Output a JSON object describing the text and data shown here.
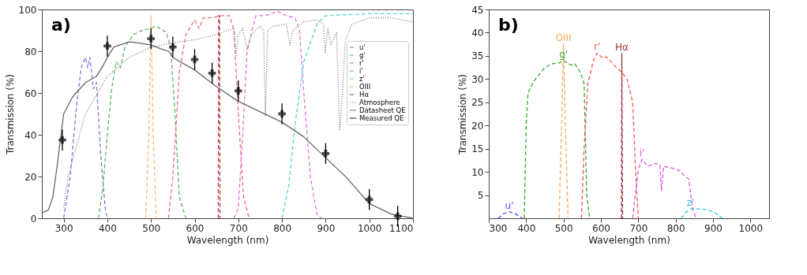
{
  "chart_data": [
    {
      "type": "line",
      "xlabel": "Wavelength (nm)",
      "ylabel": "Transmission (%)",
      "annotations": [
        "a)"
      ],
      "xlim": [
        250,
        1100
      ],
      "xticks": [
        300,
        400,
        500,
        600,
        700,
        800,
        900,
        1000,
        1100
      ],
      "ylim": [
        0,
        100
      ],
      "yticks": [
        0,
        20,
        40,
        60,
        80,
        100
      ],
      "grid": false,
      "legend": "top right",
      "series": [
        {
          "name": "u'",
          "color": "#7b7bd8",
          "line_style": "dashed",
          "x": [
            300,
            315,
            330,
            340,
            350,
            355,
            360,
            368,
            375,
            385,
            395,
            400
          ],
          "values": [
            0,
            20,
            55,
            72,
            77,
            72,
            77,
            62,
            65,
            30,
            5,
            0
          ]
        },
        {
          "name": "g'",
          "color": "#5fb85f",
          "line_style": "dashed",
          "x": [
            380,
            390,
            400,
            410,
            420,
            430,
            440,
            460,
            480,
            500,
            510,
            520,
            535,
            545,
            555,
            565,
            580
          ],
          "values": [
            0,
            15,
            40,
            62,
            75,
            72,
            82,
            88,
            90,
            91,
            92,
            91,
            89,
            82,
            50,
            10,
            0
          ]
        },
        {
          "name": "r'",
          "color": "#f07070",
          "line_style": "dashed",
          "x": [
            540,
            550,
            565,
            580,
            600,
            610,
            620,
            640,
            660,
            680,
            690,
            700,
            712,
            725
          ],
          "values": [
            0,
            20,
            70,
            88,
            95,
            91,
            96,
            96,
            97,
            97,
            90,
            50,
            10,
            0
          ]
        },
        {
          "name": "i'",
          "color": "#dd77dd",
          "line_style": "dashed",
          "x": [
            690,
            700,
            710,
            720,
            740,
            760,
            790,
            810,
            830,
            840,
            850,
            865,
            880,
            890
          ],
          "values": [
            0,
            5,
            40,
            80,
            97,
            97,
            99,
            97,
            96,
            90,
            60,
            20,
            2,
            0
          ]
        },
        {
          "name": "z'",
          "color": "#55d5d5",
          "line_style": "dashed",
          "x": [
            800,
            815,
            830,
            850,
            880,
            900,
            1000,
            1100
          ],
          "values": [
            0,
            15,
            45,
            75,
            93,
            97,
            98,
            98
          ]
        },
        {
          "name": "OIII",
          "color": "#ffbb77",
          "line_style": "dashed",
          "x": [
            488,
            495,
            500,
            505,
            512
          ],
          "values": [
            0,
            40,
            97,
            40,
            0
          ]
        },
        {
          "name": "Hα",
          "color": "#b04040",
          "line_style": "dashed",
          "x": [
            654,
            655,
            657,
            658
          ],
          "values": [
            0,
            97,
            97,
            0
          ]
        },
        {
          "name": "Atmosphere",
          "color": "#777777",
          "line_style": "dotted",
          "x": [
            300,
            310,
            350,
            400,
            450,
            500,
            550,
            600,
            650,
            690,
            695,
            700,
            710,
            720,
            730,
            750,
            758,
            762,
            767,
            780,
            810,
            818,
            825,
            850,
            880,
            895,
            899,
            905,
            912,
            925,
            932,
            937,
            945,
            960,
            1000,
            1050,
            1100
          ],
          "values": [
            5,
            20,
            50,
            68,
            77,
            82,
            84,
            85.5,
            88,
            91,
            78,
            88,
            91,
            81,
            88,
            92,
            90,
            49,
            90,
            92,
            93,
            83,
            90,
            94,
            95,
            93,
            79,
            91,
            83,
            89,
            42,
            55,
            85,
            93,
            96,
            96,
            94
          ]
        },
        {
          "name": "Datasheet QE",
          "color": "#666666",
          "line_style": "solid",
          "x": [
            250,
            265,
            275,
            285,
            300,
            320,
            350,
            375,
            390,
            400,
            415,
            450,
            470,
            500,
            525,
            540,
            550,
            600,
            650,
            700,
            750,
            800,
            850,
            900,
            950,
            1000,
            1050,
            1100
          ],
          "values": [
            2.5,
            4,
            10,
            25,
            50,
            58,
            65,
            68,
            73,
            77,
            82,
            84.5,
            84,
            83,
            81,
            80,
            77,
            71,
            63,
            56,
            51,
            46,
            39,
            29,
            19,
            7,
            2,
            0
          ]
        },
        {
          "name": "Measured QE",
          "type": "scatter",
          "marker": "cross",
          "color": "#000000",
          "x": [
            297,
            400,
            500,
            550,
            600,
            640,
            700,
            800,
            900,
            1000,
            1065
          ],
          "values": [
            37.5,
            82.5,
            86,
            82,
            76,
            69.5,
            61,
            50,
            31,
            9,
            1
          ],
          "errors": [
            5,
            5,
            5,
            5,
            5,
            5,
            5,
            5,
            5,
            5,
            5
          ]
        }
      ]
    },
    {
      "type": "line",
      "xlabel": "Wavelength (nm)",
      "ylabel": "Transmission (%)",
      "annotations": [
        "b)"
      ],
      "xlim": [
        300,
        1050
      ],
      "xticks": [
        300,
        400,
        500,
        600,
        700,
        800,
        900,
        1000
      ],
      "ylim": [
        0,
        45
      ],
      "yticks": [
        5,
        10,
        15,
        20,
        25,
        30,
        35,
        40,
        45
      ],
      "grid": false,
      "legend": false,
      "series": [
        {
          "name": "u'",
          "color": "#5555ff",
          "line_style": "dashed",
          "x": [
            325,
            340,
            355,
            370,
            390
          ],
          "values": [
            0,
            1,
            1.4,
            1,
            0
          ]
        },
        {
          "name": "g'",
          "color": "#33aa33",
          "line_style": "dashed",
          "x": [
            395,
            400,
            405,
            420,
            450,
            470,
            490,
            500,
            520,
            530,
            545,
            555,
            562,
            570
          ],
          "values": [
            0,
            20,
            27,
            29.5,
            32.5,
            33.3,
            33.5,
            34,
            33,
            33.3,
            31.5,
            29,
            5,
            0
          ]
        },
        {
          "name": "OIII",
          "color": "#ffaa55",
          "line_style": "dashed",
          "x": [
            488,
            495,
            500,
            505,
            512
          ],
          "values": [
            0,
            20,
            37.5,
            20,
            0
          ]
        },
        {
          "name": "r'",
          "color": "#ff5555",
          "line_style": "dashed",
          "x": [
            548,
            555,
            565,
            580,
            590,
            605,
            615,
            635,
            655,
            670,
            685,
            693,
            700
          ],
          "values": [
            0,
            15,
            29,
            34,
            35.6,
            34.5,
            34.8,
            33,
            31.5,
            30,
            25,
            10,
            0
          ]
        },
        {
          "name": "Hα",
          "color": "#993333",
          "line_style": "dashed",
          "x": [
            655,
            656,
            658
          ],
          "values": [
            0,
            35.5,
            0
          ]
        },
        {
          "name": "i'",
          "color": "#dd55dd",
          "line_style": "dashed",
          "x": [
            685,
            692,
            700,
            710,
            725,
            745,
            758,
            762,
            768,
            790,
            810,
            825,
            835,
            845,
            855
          ],
          "values": [
            0,
            5,
            10.5,
            12.7,
            11.2,
            11.8,
            11.5,
            6,
            11.2,
            10.8,
            10.3,
            9,
            8.5,
            2,
            0
          ]
        },
        {
          "name": "z'",
          "color": "#33cccc",
          "line_style": "dashed",
          "x": [
            815,
            830,
            840,
            870,
            900,
            925
          ],
          "values": [
            0,
            1.5,
            2,
            2,
            1.5,
            0
          ]
        }
      ]
    }
  ]
}
